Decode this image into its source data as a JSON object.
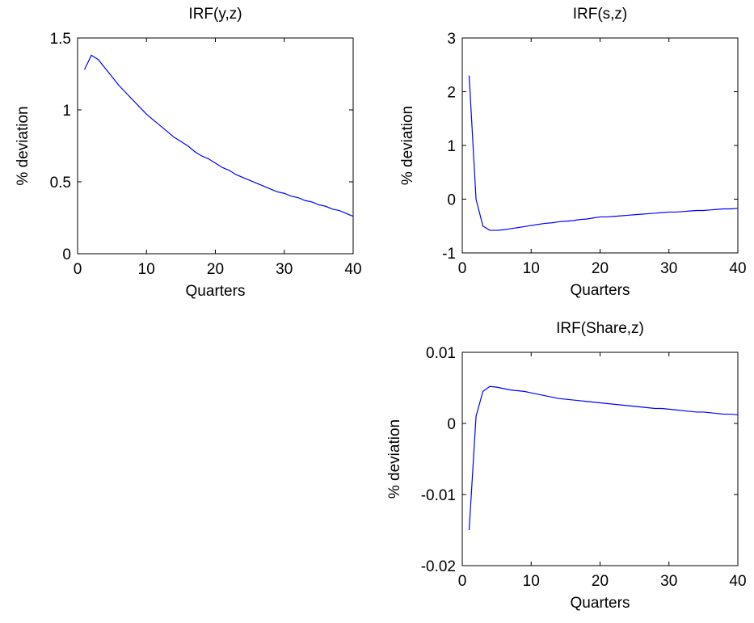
{
  "chart_data": [
    {
      "type": "line",
      "title": "IRF(y,z)",
      "xlabel": "Quarters",
      "ylabel": "% deviation",
      "xlim": [
        0,
        40
      ],
      "ylim": [
        0,
        1.5
      ],
      "xticks": [
        0,
        10,
        20,
        30,
        40
      ],
      "yticks": [
        0,
        0.5,
        1,
        1.5
      ],
      "x": [
        1,
        2,
        3,
        4,
        5,
        6,
        7,
        8,
        9,
        10,
        11,
        12,
        13,
        14,
        15,
        16,
        17,
        18,
        19,
        20,
        21,
        22,
        23,
        24,
        25,
        26,
        27,
        28,
        29,
        30,
        31,
        32,
        33,
        34,
        35,
        36,
        37,
        38,
        39,
        40
      ],
      "series": [
        {
          "name": "IRF(y,z)",
          "color": "#0000ff",
          "values": [
            1.28,
            1.38,
            1.35,
            1.29,
            1.23,
            1.17,
            1.12,
            1.07,
            1.02,
            0.97,
            0.93,
            0.89,
            0.85,
            0.81,
            0.78,
            0.75,
            0.71,
            0.68,
            0.66,
            0.63,
            0.6,
            0.58,
            0.55,
            0.53,
            0.51,
            0.49,
            0.47,
            0.45,
            0.43,
            0.42,
            0.4,
            0.39,
            0.37,
            0.36,
            0.34,
            0.33,
            0.31,
            0.3,
            0.28,
            0.26
          ]
        }
      ]
    },
    {
      "type": "line",
      "title": "IRF(s,z)",
      "xlabel": "Quarters",
      "ylabel": "% deviation",
      "xlim": [
        0,
        40
      ],
      "ylim": [
        -1,
        3
      ],
      "xticks": [
        0,
        10,
        20,
        30,
        40
      ],
      "yticks": [
        -1,
        0,
        1,
        2,
        3
      ],
      "x": [
        1,
        2,
        3,
        4,
        5,
        6,
        7,
        8,
        9,
        10,
        11,
        12,
        13,
        14,
        15,
        16,
        17,
        18,
        19,
        20,
        21,
        22,
        23,
        24,
        25,
        26,
        27,
        28,
        29,
        30,
        31,
        32,
        33,
        34,
        35,
        36,
        37,
        38,
        39,
        40
      ],
      "series": [
        {
          "name": "IRF(s,z)",
          "color": "#0000ff",
          "values": [
            2.3,
            0.0,
            -0.5,
            -0.58,
            -0.58,
            -0.57,
            -0.55,
            -0.53,
            -0.51,
            -0.49,
            -0.47,
            -0.45,
            -0.44,
            -0.42,
            -0.41,
            -0.4,
            -0.38,
            -0.37,
            -0.35,
            -0.33,
            -0.33,
            -0.32,
            -0.31,
            -0.3,
            -0.29,
            -0.28,
            -0.27,
            -0.26,
            -0.25,
            -0.24,
            -0.24,
            -0.23,
            -0.22,
            -0.21,
            -0.21,
            -0.2,
            -0.19,
            -0.18,
            -0.18,
            -0.17
          ]
        }
      ]
    },
    {
      "type": "line",
      "title": "IRF(Share,z)",
      "xlabel": "Quarters",
      "ylabel": "% deviation",
      "xlim": [
        0,
        40
      ],
      "ylim": [
        -0.02,
        0.01
      ],
      "xticks": [
        0,
        10,
        20,
        30,
        40
      ],
      "yticks": [
        -0.02,
        -0.01,
        0,
        0.01
      ],
      "x": [
        1,
        2,
        3,
        4,
        5,
        6,
        7,
        8,
        9,
        10,
        11,
        12,
        13,
        14,
        15,
        16,
        17,
        18,
        19,
        20,
        21,
        22,
        23,
        24,
        25,
        26,
        27,
        28,
        29,
        30,
        31,
        32,
        33,
        34,
        35,
        36,
        37,
        38,
        39,
        40
      ],
      "series": [
        {
          "name": "IRF(Share,z)",
          "color": "#0000ff",
          "values": [
            -0.015,
            0.001,
            0.0045,
            0.0052,
            0.0051,
            0.0049,
            0.0047,
            0.0046,
            0.0045,
            0.0043,
            0.0041,
            0.0039,
            0.0037,
            0.0035,
            0.0034,
            0.0033,
            0.0032,
            0.0031,
            0.003,
            0.0029,
            0.0028,
            0.0027,
            0.0026,
            0.0025,
            0.0024,
            0.0023,
            0.0022,
            0.0021,
            0.0021,
            0.002,
            0.0019,
            0.0018,
            0.0017,
            0.0016,
            0.0016,
            0.0015,
            0.0014,
            0.0013,
            0.0013,
            0.0012
          ]
        }
      ]
    }
  ]
}
